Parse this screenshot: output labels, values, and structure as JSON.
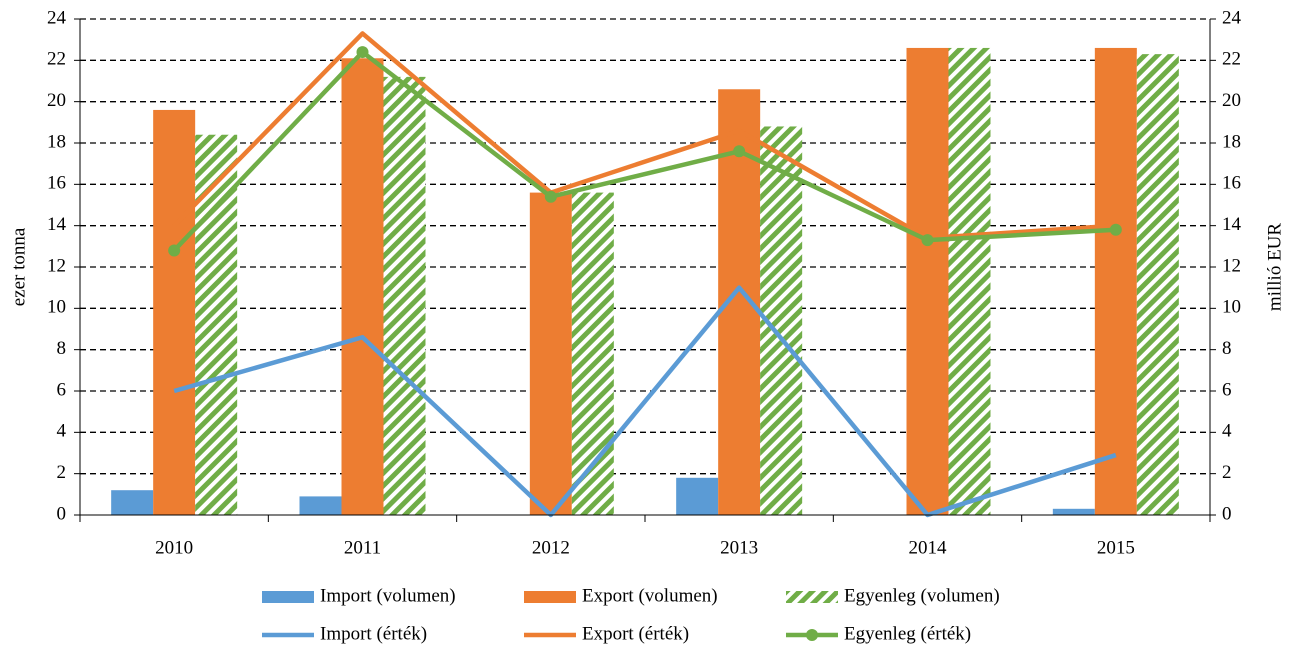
{
  "chart_data": {
    "type": "bar",
    "categories": [
      "2010",
      "2011",
      "2012",
      "2013",
      "2014",
      "2015"
    ],
    "y_label": "ezer tonna",
    "y2_label": "millió EUR",
    "ylim": [
      0,
      24
    ],
    "yticks": [
      0,
      2,
      4,
      6,
      8,
      10,
      12,
      14,
      16,
      18,
      20,
      22,
      24
    ],
    "y2lim": [
      0,
      24
    ],
    "y2ticks": [
      0,
      2,
      4,
      6,
      8,
      10,
      12,
      14,
      16,
      18,
      20,
      22,
      24
    ],
    "grid": true,
    "legend": "bottom",
    "series": [
      {
        "name": "Import (volumen)",
        "type": "bar",
        "color": "#5b9bd5",
        "values": [
          1.2,
          0.9,
          0,
          1.8,
          0,
          0.3
        ]
      },
      {
        "name": "Export (volumen)",
        "type": "bar",
        "color": "#ed7d31",
        "values": [
          19.6,
          22.1,
          15.6,
          20.6,
          22.6,
          22.6
        ]
      },
      {
        "name": "Egyenleg (volumen)",
        "type": "bar",
        "color": "#70ad47",
        "pattern": "hatch",
        "values": [
          18.4,
          21.2,
          15.6,
          18.8,
          22.6,
          22.3
        ]
      },
      {
        "name": "Import (érték)",
        "type": "line",
        "axis": "y2",
        "color": "#5b9bd5",
        "values": [
          6.0,
          8.6,
          0,
          11.0,
          0,
          2.9
        ]
      },
      {
        "name": "Export (érték)",
        "type": "line",
        "axis": "y2",
        "color": "#ed7d31",
        "values": [
          14.0,
          23.3,
          15.6,
          18.6,
          13.4,
          14.0
        ]
      },
      {
        "name": "Egyenleg (érték)",
        "type": "line",
        "axis": "y2",
        "color": "#70ad47",
        "marker": "circle",
        "values": [
          12.8,
          22.4,
          15.4,
          17.6,
          13.3,
          13.8
        ]
      }
    ]
  }
}
